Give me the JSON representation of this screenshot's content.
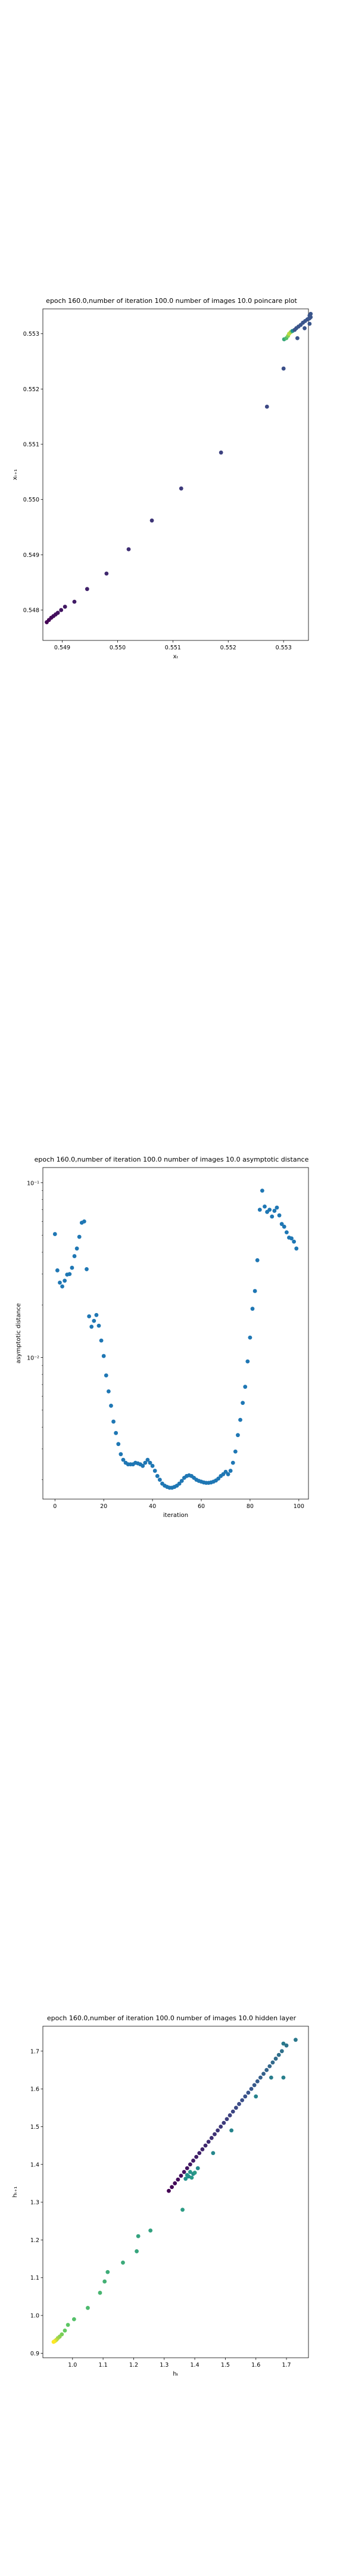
{
  "chart_data": [
    {
      "type": "scatter",
      "title": "epoch 160.0,number of iteration 100.0 number of images 10.0 poincare plot",
      "xlabel": "xₜ",
      "ylabel": "xₜ₊₁",
      "xlim": [
        0.54865,
        0.55345
      ],
      "ylim": [
        0.54745,
        0.55345
      ],
      "xticks": [
        0.549,
        0.55,
        0.551,
        0.552,
        0.553
      ],
      "xtick_labels": [
        "0.549",
        "0.550",
        "0.551",
        "0.552",
        "0.553"
      ],
      "yticks": [
        0.548,
        0.549,
        0.55,
        0.551,
        0.552,
        0.553
      ],
      "ytick_labels": [
        "0.548",
        "0.549",
        "0.550",
        "0.551",
        "0.552",
        "0.553"
      ],
      "colormap": "viridis (colored by iteration)",
      "points": [
        {
          "x": 0.54872,
          "y": 0.54778,
          "c": 0.0
        },
        {
          "x": 0.54876,
          "y": 0.54782,
          "c": 0.01
        },
        {
          "x": 0.5488,
          "y": 0.54786,
          "c": 0.02
        },
        {
          "x": 0.54884,
          "y": 0.54789,
          "c": 0.03
        },
        {
          "x": 0.54888,
          "y": 0.54792,
          "c": 0.04
        },
        {
          "x": 0.54892,
          "y": 0.54795,
          "c": 0.05
        },
        {
          "x": 0.54898,
          "y": 0.548,
          "c": 0.06
        },
        {
          "x": 0.54905,
          "y": 0.54806,
          "c": 0.07
        },
        {
          "x": 0.54922,
          "y": 0.54815,
          "c": 0.08
        },
        {
          "x": 0.54945,
          "y": 0.54838,
          "c": 0.1
        },
        {
          "x": 0.5498,
          "y": 0.54866,
          "c": 0.12
        },
        {
          "x": 0.5502,
          "y": 0.5491,
          "c": 0.14
        },
        {
          "x": 0.55062,
          "y": 0.54962,
          "c": 0.16
        },
        {
          "x": 0.55115,
          "y": 0.5502,
          "c": 0.18
        },
        {
          "x": 0.55187,
          "y": 0.55085,
          "c": 0.2
        },
        {
          "x": 0.5527,
          "y": 0.55168,
          "c": 0.22
        },
        {
          "x": 0.553,
          "y": 0.55237,
          "c": 0.24
        },
        {
          "x": 0.55301,
          "y": 0.5529,
          "c": 0.6
        },
        {
          "x": 0.55305,
          "y": 0.55292,
          "c": 0.7
        },
        {
          "x": 0.55308,
          "y": 0.55296,
          "c": 0.8
        },
        {
          "x": 0.5531,
          "y": 0.553,
          "c": 0.9
        },
        {
          "x": 0.55313,
          "y": 0.55303,
          "c": 0.85
        },
        {
          "x": 0.55316,
          "y": 0.55305,
          "c": 0.5
        },
        {
          "x": 0.5532,
          "y": 0.55307,
          "c": 0.26
        },
        {
          "x": 0.55323,
          "y": 0.5531,
          "c": 0.26
        },
        {
          "x": 0.55327,
          "y": 0.55313,
          "c": 0.26
        },
        {
          "x": 0.55331,
          "y": 0.55316,
          "c": 0.26
        },
        {
          "x": 0.55335,
          "y": 0.5532,
          "c": 0.26
        },
        {
          "x": 0.55339,
          "y": 0.55323,
          "c": 0.26
        },
        {
          "x": 0.55343,
          "y": 0.55326,
          "c": 0.26
        },
        {
          "x": 0.55345,
          "y": 0.55327,
          "c": 0.26
        },
        {
          "x": 0.55347,
          "y": 0.55328,
          "c": 0.26
        },
        {
          "x": 0.55349,
          "y": 0.5533,
          "c": 0.26
        },
        {
          "x": 0.55338,
          "y": 0.5531,
          "c": 0.26
        },
        {
          "x": 0.55325,
          "y": 0.55292,
          "c": 0.26
        },
        {
          "x": 0.55347,
          "y": 0.55318,
          "c": 0.26
        },
        {
          "x": 0.55347,
          "y": 0.55333,
          "c": 0.26
        },
        {
          "x": 0.55349,
          "y": 0.55336,
          "c": 0.26
        }
      ]
    },
    {
      "type": "scatter",
      "title": "epoch 160.0,number of iteration 100.0  number of images 10.0 asymptotic distance",
      "xlabel": "iteration",
      "ylabel": "asymptotic distance",
      "xlim": [
        -4.95,
        103.95
      ],
      "yscale": "log",
      "ylim": [
        0.00155,
        0.122
      ],
      "xticks": [
        0,
        20,
        40,
        60,
        80,
        100
      ],
      "xtick_labels": [
        "0",
        "20",
        "40",
        "60",
        "80",
        "100"
      ],
      "ytick_labels": [
        "10⁻¹",
        "10⁻²"
      ],
      "color": "#1f77b4",
      "x": [
        0,
        1,
        2,
        3,
        4,
        5,
        6,
        7,
        8,
        9,
        10,
        11,
        12,
        13,
        14,
        15,
        16,
        17,
        18,
        19,
        20,
        21,
        22,
        23,
        24,
        25,
        26,
        27,
        28,
        29,
        30,
        31,
        32,
        33,
        34,
        35,
        36,
        37,
        38,
        39,
        40,
        41,
        42,
        43,
        44,
        45,
        46,
        47,
        48,
        49,
        50,
        51,
        52,
        53,
        54,
        55,
        56,
        57,
        58,
        59,
        60,
        61,
        62,
        63,
        64,
        65,
        66,
        67,
        68,
        69,
        70,
        71,
        72,
        73,
        74,
        75,
        76,
        77,
        78,
        79,
        80,
        81,
        82,
        83,
        84,
        85,
        86,
        87,
        88,
        89,
        90,
        91,
        92,
        93,
        94,
        95,
        96,
        97,
        98,
        99
      ],
      "y": [
        0.0508,
        0.0315,
        0.0268,
        0.0255,
        0.0275,
        0.0298,
        0.03,
        0.0326,
        0.038,
        0.042,
        0.049,
        0.059,
        0.06,
        0.032,
        0.0172,
        0.015,
        0.0162,
        0.0175,
        0.0152,
        0.0125,
        0.0102,
        0.0079,
        0.0064,
        0.0053,
        0.0043,
        0.0037,
        0.0032,
        0.0028,
        0.0026,
        0.0025,
        0.00245,
        0.00245,
        0.00245,
        0.0025,
        0.00248,
        0.00245,
        0.0024,
        0.0025,
        0.0026,
        0.0025,
        0.0024,
        0.00225,
        0.0021,
        0.002,
        0.0019,
        0.00185,
        0.00182,
        0.0018,
        0.0018,
        0.00182,
        0.00185,
        0.0019,
        0.00197,
        0.00205,
        0.0021,
        0.00212,
        0.0021,
        0.00205,
        0.002,
        0.00197,
        0.00195,
        0.00193,
        0.00192,
        0.00192,
        0.00193,
        0.00195,
        0.00198,
        0.00203,
        0.0021,
        0.00215,
        0.00222,
        0.00215,
        0.00225,
        0.0025,
        0.0029,
        0.0036,
        0.0044,
        0.0055,
        0.0068,
        0.0095,
        0.013,
        0.019,
        0.024,
        0.036,
        0.07,
        0.09,
        0.073,
        0.068,
        0.07,
        0.064,
        0.069,
        0.072,
        0.065,
        0.058,
        0.056,
        0.052,
        0.0485,
        0.048,
        0.046,
        0.042
      ]
    },
    {
      "type": "scatter",
      "title": "epoch 160.0,number of iteration 100.0  number of images 10.0 hidden layer",
      "xlabel": "hₜ",
      "ylabel": "hₜ₊₁",
      "xlim": [
        0.903,
        1.772
      ],
      "ylim": [
        0.888,
        1.766
      ],
      "xticks": [
        1.0,
        1.1,
        1.2,
        1.3,
        1.4,
        1.5,
        1.6,
        1.7
      ],
      "xtick_labels": [
        "1.0",
        "1.1",
        "1.2",
        "1.3",
        "1.4",
        "1.5",
        "1.6",
        "1.7"
      ],
      "yticks": [
        0.9,
        1.0,
        1.1,
        1.2,
        1.3,
        1.4,
        1.5,
        1.6,
        1.7
      ],
      "ytick_labels": [
        "0.9",
        "1.0",
        "1.1",
        "1.2",
        "1.3",
        "1.4",
        "1.5",
        "1.6",
        "1.7"
      ],
      "colormap": "viridis (colored by iteration)",
      "points": [
        {
          "x": 1.315,
          "y": 1.33,
          "c": 0.0
        },
        {
          "x": 1.325,
          "y": 1.34,
          "c": 0.01
        },
        {
          "x": 1.335,
          "y": 1.35,
          "c": 0.02
        },
        {
          "x": 1.345,
          "y": 1.36,
          "c": 0.03
        },
        {
          "x": 1.355,
          "y": 1.37,
          "c": 0.04
        },
        {
          "x": 1.365,
          "y": 1.38,
          "c": 0.05
        },
        {
          "x": 1.375,
          "y": 1.39,
          "c": 0.06
        },
        {
          "x": 1.385,
          "y": 1.4,
          "c": 0.07
        },
        {
          "x": 1.395,
          "y": 1.41,
          "c": 0.08
        },
        {
          "x": 1.405,
          "y": 1.42,
          "c": 0.09
        },
        {
          "x": 1.415,
          "y": 1.43,
          "c": 0.1
        },
        {
          "x": 1.425,
          "y": 1.44,
          "c": 0.11
        },
        {
          "x": 1.435,
          "y": 1.45,
          "c": 0.12
        },
        {
          "x": 1.445,
          "y": 1.46,
          "c": 0.13
        },
        {
          "x": 1.455,
          "y": 1.47,
          "c": 0.14
        },
        {
          "x": 1.465,
          "y": 1.48,
          "c": 0.15
        },
        {
          "x": 1.475,
          "y": 1.49,
          "c": 0.16
        },
        {
          "x": 1.485,
          "y": 1.5,
          "c": 0.17
        },
        {
          "x": 1.495,
          "y": 1.51,
          "c": 0.18
        },
        {
          "x": 1.505,
          "y": 1.52,
          "c": 0.19
        },
        {
          "x": 1.515,
          "y": 1.53,
          "c": 0.2
        },
        {
          "x": 1.525,
          "y": 1.54,
          "c": 0.21
        },
        {
          "x": 1.535,
          "y": 1.55,
          "c": 0.22
        },
        {
          "x": 1.545,
          "y": 1.56,
          "c": 0.23
        },
        {
          "x": 1.555,
          "y": 1.57,
          "c": 0.24
        },
        {
          "x": 1.565,
          "y": 1.58,
          "c": 0.25
        },
        {
          "x": 1.575,
          "y": 1.59,
          "c": 0.26
        },
        {
          "x": 1.585,
          "y": 1.6,
          "c": 0.27
        },
        {
          "x": 1.595,
          "y": 1.61,
          "c": 0.28
        },
        {
          "x": 1.605,
          "y": 1.62,
          "c": 0.29
        },
        {
          "x": 1.615,
          "y": 1.63,
          "c": 0.3
        },
        {
          "x": 1.625,
          "y": 1.64,
          "c": 0.31
        },
        {
          "x": 1.635,
          "y": 1.65,
          "c": 0.32
        },
        {
          "x": 1.645,
          "y": 1.66,
          "c": 0.33
        },
        {
          "x": 1.655,
          "y": 1.67,
          "c": 0.34
        },
        {
          "x": 1.665,
          "y": 1.68,
          "c": 0.35
        },
        {
          "x": 1.675,
          "y": 1.69,
          "c": 0.36
        },
        {
          "x": 1.685,
          "y": 1.7,
          "c": 0.37
        },
        {
          "x": 1.7,
          "y": 1.715,
          "c": 0.38
        },
        {
          "x": 1.73,
          "y": 1.73,
          "c": 0.4
        },
        {
          "x": 1.69,
          "y": 1.72,
          "c": 0.41
        },
        {
          "x": 1.65,
          "y": 1.63,
          "c": 0.42
        },
        {
          "x": 1.69,
          "y": 1.63,
          "c": 0.43
        },
        {
          "x": 1.6,
          "y": 1.58,
          "c": 0.44
        },
        {
          "x": 1.52,
          "y": 1.49,
          "c": 0.45
        },
        {
          "x": 1.46,
          "y": 1.43,
          "c": 0.46
        },
        {
          "x": 1.41,
          "y": 1.39,
          "c": 0.47
        },
        {
          "x": 1.395,
          "y": 1.375,
          "c": 0.48
        },
        {
          "x": 1.38,
          "y": 1.368,
          "c": 0.49
        },
        {
          "x": 1.37,
          "y": 1.362,
          "c": 0.5
        },
        {
          "x": 1.375,
          "y": 1.372,
          "c": 0.51
        },
        {
          "x": 1.385,
          "y": 1.38,
          "c": 0.52
        },
        {
          "x": 1.39,
          "y": 1.365,
          "c": 0.53
        },
        {
          "x": 1.4,
          "y": 1.378,
          "c": 0.54
        },
        {
          "x": 1.36,
          "y": 1.28,
          "c": 0.55
        },
        {
          "x": 1.255,
          "y": 1.225,
          "c": 0.57
        },
        {
          "x": 1.215,
          "y": 1.21,
          "c": 0.58
        },
        {
          "x": 1.21,
          "y": 1.17,
          "c": 0.59
        },
        {
          "x": 1.165,
          "y": 1.14,
          "c": 0.61
        },
        {
          "x": 1.115,
          "y": 1.115,
          "c": 0.62
        },
        {
          "x": 1.105,
          "y": 1.09,
          "c": 0.64
        },
        {
          "x": 1.09,
          "y": 1.06,
          "c": 0.66
        },
        {
          "x": 1.05,
          "y": 1.02,
          "c": 0.68
        },
        {
          "x": 1.005,
          "y": 0.99,
          "c": 0.71
        },
        {
          "x": 0.985,
          "y": 0.975,
          "c": 0.74
        },
        {
          "x": 0.975,
          "y": 0.96,
          "c": 0.76
        },
        {
          "x": 0.965,
          "y": 0.95,
          "c": 0.79
        },
        {
          "x": 0.958,
          "y": 0.944,
          "c": 0.82
        },
        {
          "x": 0.952,
          "y": 0.94,
          "c": 0.85
        },
        {
          "x": 0.948,
          "y": 0.936,
          "c": 0.88
        },
        {
          "x": 0.945,
          "y": 0.934,
          "c": 0.91
        },
        {
          "x": 0.942,
          "y": 0.932,
          "c": 0.94
        },
        {
          "x": 0.94,
          "y": 0.931,
          "c": 0.97
        },
        {
          "x": 0.938,
          "y": 0.93,
          "c": 1.0
        }
      ]
    }
  ]
}
